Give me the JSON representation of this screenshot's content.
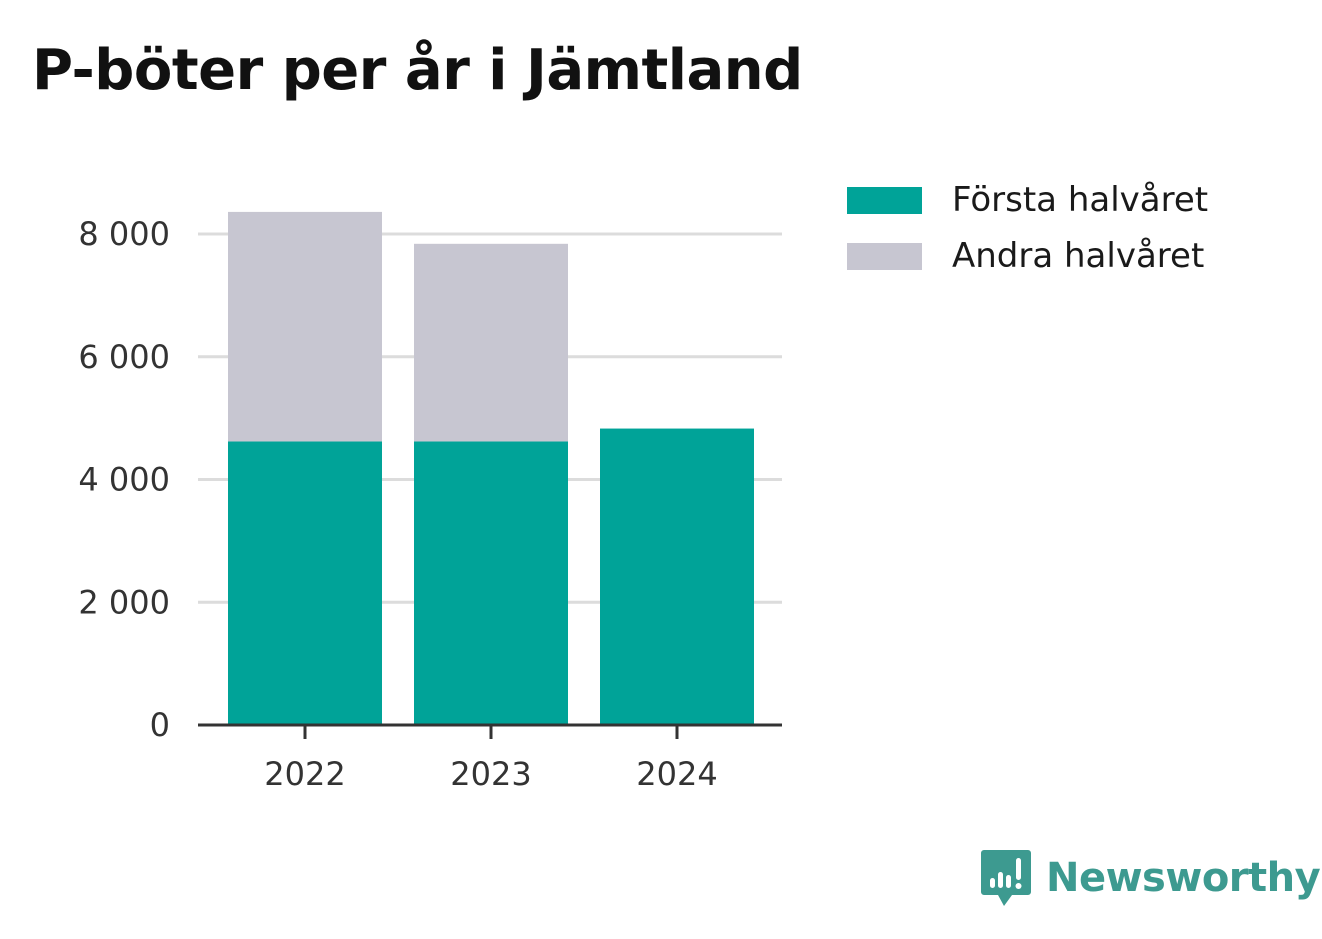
{
  "brand": {
    "name": "Newsworthy",
    "color": "#3d9a90",
    "icon": "bar-chart-speech-bubble-icon"
  },
  "chart_data": {
    "type": "bar",
    "stacked": true,
    "title": "P-böter per år i Jämtland",
    "xlabel": "",
    "ylabel": "",
    "categories": [
      "2022",
      "2023",
      "2024"
    ],
    "series": [
      {
        "name": "Första halvåret",
        "color": "#00a398",
        "values": [
          4620,
          4620,
          4830
        ]
      },
      {
        "name": "Andra halvåret",
        "color": "#c7c6d1",
        "values": [
          3740,
          3220,
          0
        ]
      }
    ],
    "ylim": [
      0,
      8600
    ],
    "yticks": [
      0,
      2000,
      4000,
      6000,
      8000
    ],
    "ytick_labels": [
      "0",
      "2 000",
      "4 000",
      "6 000",
      "8 000"
    ],
    "grid": true,
    "legend_position": "top-right"
  }
}
